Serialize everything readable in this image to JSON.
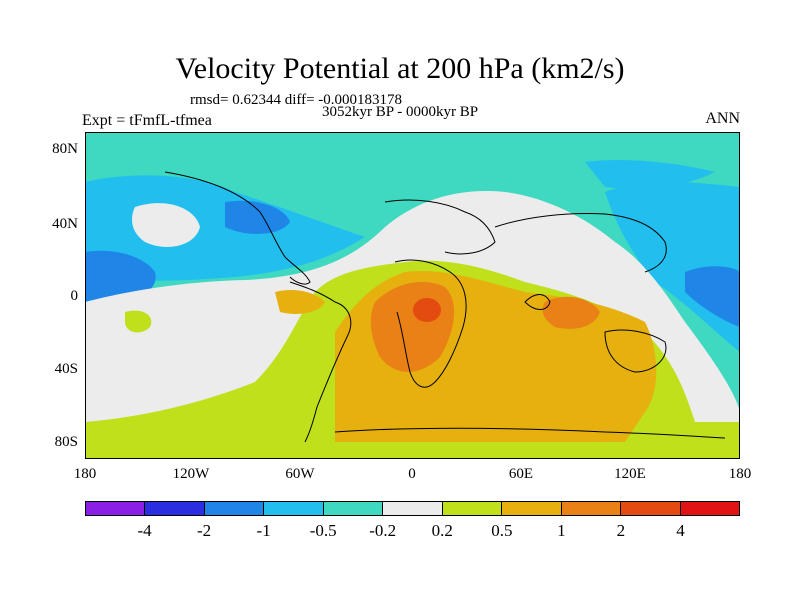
{
  "title": "Velocity Potential at 200 hPa (km2/s)",
  "stats_line": "rmsd= 0.62344 diff= -0.000183178",
  "period_line": "3052kyr BP - 0000kyr BP",
  "experiment_label": "Expt = tFmfL-tfmea",
  "season_label": "ANN",
  "axes": {
    "y_ticks": [
      "80N",
      "40N",
      "0",
      "40S",
      "80S"
    ],
    "x_ticks": [
      "180",
      "120W",
      "60W",
      "0",
      "60E",
      "120E",
      "180"
    ]
  },
  "colorbar": {
    "colors": [
      "#8a1fe6",
      "#2b2ee0",
      "#1f86e8",
      "#22bfee",
      "#3ed9c0",
      "#ececec",
      "#bfe01a",
      "#e6b00e",
      "#e98116",
      "#e34b10",
      "#e01414"
    ],
    "labels": [
      "-4",
      "-2",
      "-1",
      "-0.5",
      "-0.2",
      "0.2",
      "0.5",
      "1",
      "2",
      "4"
    ]
  },
  "map_colors": {
    "teal": "#3ed9c0",
    "cyan": "#22bfee",
    "blue": "#1f86e8",
    "white": "#ececec",
    "green": "#bfe01a",
    "gold": "#e6b00e",
    "orange": "#e98116",
    "deep_orange": "#e34b10"
  }
}
